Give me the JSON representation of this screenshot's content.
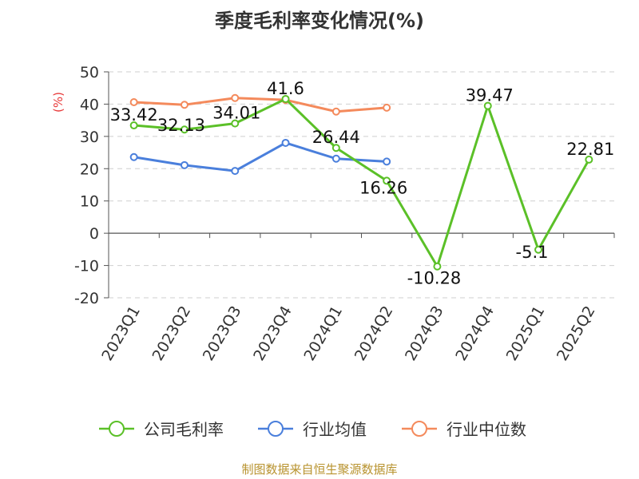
{
  "chart_data": {
    "type": "line",
    "title": "季度毛利率变化情况(%)",
    "ylabel": "(%)",
    "xlabel": "",
    "ylim": [
      -20,
      50
    ],
    "yticks": [
      50,
      40,
      30,
      20,
      10,
      0,
      -10,
      -20
    ],
    "grid": true,
    "legend_position": "bottom",
    "categories": [
      "2023Q1",
      "2023Q2",
      "2023Q3",
      "2023Q4",
      "2024Q1",
      "2024Q2",
      "2024Q3",
      "2024Q4",
      "2025Q1",
      "2025Q2"
    ],
    "series": [
      {
        "name": "公司毛利率",
        "color": "#5bc028",
        "values": [
          33.42,
          32.13,
          34.01,
          41.6,
          26.44,
          16.26,
          -10.28,
          39.47,
          -5.1,
          22.81
        ],
        "labels": [
          "33.42",
          "32.13",
          "34.01",
          "41.6",
          "26.44",
          "16.26",
          "-10.28",
          "39.47",
          "-5.1",
          "22.81"
        ]
      },
      {
        "name": "行业均值",
        "color": "#4a7fdc",
        "values": [
          23.6,
          21.1,
          19.3,
          28.0,
          23.1,
          22.2,
          null,
          null,
          null,
          null
        ]
      },
      {
        "name": "行业中位数",
        "color": "#f48a5c",
        "values": [
          40.6,
          39.8,
          41.9,
          41.3,
          37.7,
          38.9,
          null,
          null,
          null,
          null
        ]
      }
    ],
    "source": "制图数据来自恒生聚源数据库"
  }
}
